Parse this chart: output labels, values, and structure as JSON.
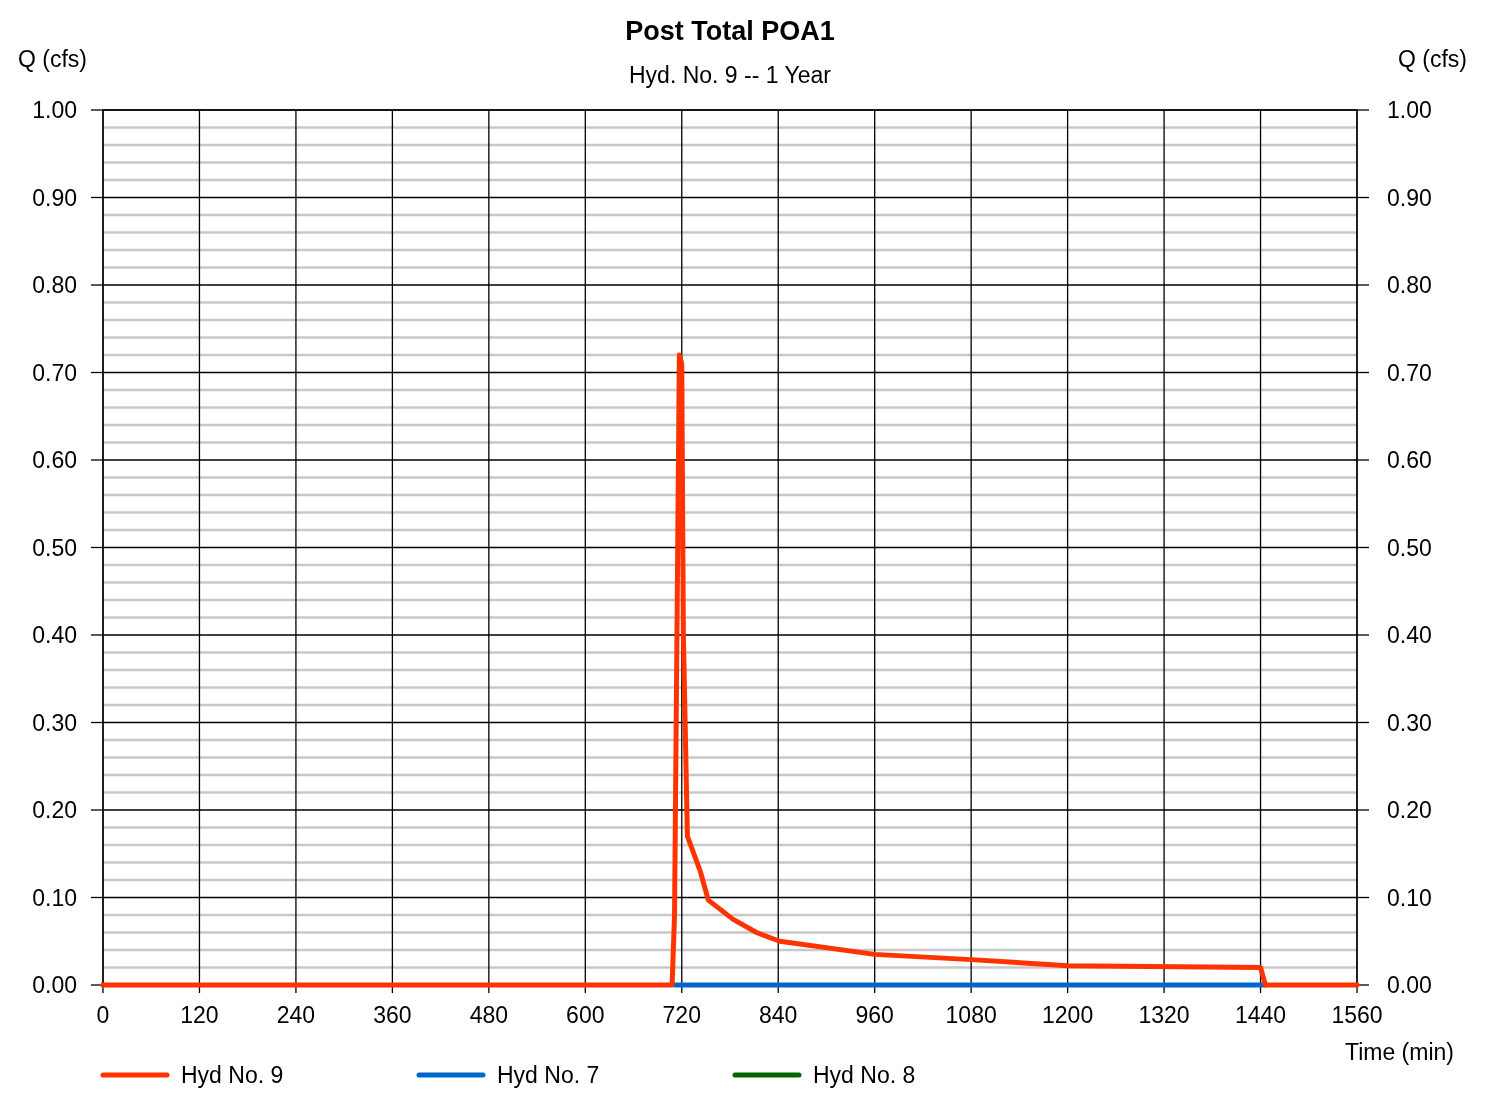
{
  "chart_data": {
    "type": "line",
    "title": "Post Total POA1",
    "subtitle": "Hyd. No. 9 -- 1 Year",
    "xlabel": "Time (min)",
    "ylabel": "Q (cfs)",
    "y2label": "Q (cfs)",
    "xlim": [
      0,
      1560
    ],
    "xticks": [
      0,
      120,
      240,
      360,
      480,
      600,
      720,
      840,
      960,
      1080,
      1200,
      1320,
      1440,
      1560
    ],
    "ylim": [
      0,
      1
    ],
    "yticks": [
      {
        "value": 0,
        "label": "0.00"
      },
      {
        "value": 0.02,
        "label": null
      },
      {
        "value": 0.04,
        "label": null
      },
      {
        "value": 0.06,
        "label": null
      },
      {
        "value": 0.08,
        "label": null
      },
      {
        "value": 0.1,
        "label": "0.10"
      },
      {
        "value": 0.12,
        "label": null
      },
      {
        "value": 0.14,
        "label": null
      },
      {
        "value": 0.16,
        "label": null
      },
      {
        "value": 0.18,
        "label": null
      },
      {
        "value": 0.2,
        "label": "0.20"
      },
      {
        "value": 0.22,
        "label": null
      },
      {
        "value": 0.24,
        "label": null
      },
      {
        "value": 0.26,
        "label": null
      },
      {
        "value": 0.28,
        "label": null
      },
      {
        "value": 0.3,
        "label": "0.30"
      },
      {
        "value": 0.32,
        "label": null
      },
      {
        "value": 0.34,
        "label": null
      },
      {
        "value": 0.36,
        "label": null
      },
      {
        "value": 0.38,
        "label": null
      },
      {
        "value": 0.4,
        "label": "0.40"
      },
      {
        "value": 0.42,
        "label": null
      },
      {
        "value": 0.44,
        "label": null
      },
      {
        "value": 0.46,
        "label": null
      },
      {
        "value": 0.48,
        "label": null
      },
      {
        "value": 0.5,
        "label": "0.50"
      },
      {
        "value": 0.52,
        "label": null
      },
      {
        "value": 0.54,
        "label": null
      },
      {
        "value": 0.56,
        "label": null
      },
      {
        "value": 0.58,
        "label": null
      },
      {
        "value": 0.6,
        "label": "0.60"
      },
      {
        "value": 0.62,
        "label": null
      },
      {
        "value": 0.64,
        "label": null
      },
      {
        "value": 0.66,
        "label": null
      },
      {
        "value": 0.68,
        "label": null
      },
      {
        "value": 0.7,
        "label": "0.70"
      },
      {
        "value": 0.72,
        "label": null
      },
      {
        "value": 0.74,
        "label": null
      },
      {
        "value": 0.76,
        "label": null
      },
      {
        "value": 0.78,
        "label": null
      },
      {
        "value": 0.8,
        "label": "0.80"
      },
      {
        "value": 0.82,
        "label": null
      },
      {
        "value": 0.84,
        "label": null
      },
      {
        "value": 0.86,
        "label": null
      },
      {
        "value": 0.88,
        "label": null
      },
      {
        "value": 0.9,
        "label": "0.90"
      },
      {
        "value": 0.92,
        "label": null
      },
      {
        "value": 0.94,
        "label": null
      },
      {
        "value": 0.96,
        "label": null
      },
      {
        "value": 0.98,
        "label": null
      },
      {
        "value": 1,
        "label": "1.00"
      }
    ],
    "y2lim": [
      0,
      1
    ],
    "y2ticks": [
      {
        "value": 0,
        "label": "0.00"
      },
      {
        "value": 0.1,
        "label": "0.10"
      },
      {
        "value": 0.2,
        "label": "0.20"
      },
      {
        "value": 0.3,
        "label": "0.30"
      },
      {
        "value": 0.4,
        "label": "0.40"
      },
      {
        "value": 0.5,
        "label": "0.50"
      },
      {
        "value": 0.6,
        "label": "0.60"
      },
      {
        "value": 0.7,
        "label": "0.70"
      },
      {
        "value": 0.8,
        "label": "0.80"
      },
      {
        "value": 0.9,
        "label": "0.90"
      },
      {
        "value": 1,
        "label": "1.00"
      }
    ],
    "grid": true,
    "legend": "bottom",
    "marker": "none",
    "line_style": "solid",
    "series": [
      {
        "name": "Hyd No. 9",
        "color": "#ff3300",
        "x": [
          0,
          708,
          711,
          714,
          717,
          720,
          722,
          727,
          743,
          753,
          784,
          813,
          842,
          960,
          1080,
          1200,
          1440,
          1446,
          1560
        ],
        "values": [
          0,
          0,
          0.08,
          0.4,
          0.72,
          0.71,
          0.4,
          0.17,
          0.13,
          0.097,
          0.075,
          0.06,
          0.05,
          0.035,
          0.029,
          0.022,
          0.02,
          0,
          0
        ]
      },
      {
        "name": "Hyd No. 7",
        "color": "#0066cc",
        "x": [
          711,
          1446
        ],
        "values": [
          0,
          0
        ]
      },
      {
        "name": "Hyd No. 8",
        "color": "#006600"
      }
    ]
  }
}
